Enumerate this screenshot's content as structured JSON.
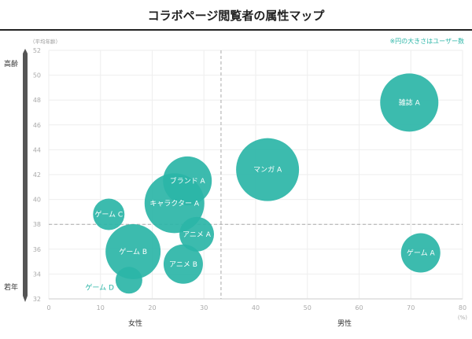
{
  "chart_data": {
    "type": "scatter",
    "subtype": "bubble",
    "title": "コラボページ閲覧者の属性マップ",
    "note": "※円の大きさはユーザー数",
    "ylabel": "（平均年齢）",
    "xunit": "(%)",
    "y_top_label": "高齢",
    "y_bottom_label": "若年",
    "x_left_label": "女性",
    "x_right_label": "男性",
    "xlim": [
      0,
      80
    ],
    "ylim": [
      32,
      52
    ],
    "xticks": [
      0,
      10,
      20,
      30,
      40,
      50,
      60,
      70,
      80
    ],
    "yticks": [
      32,
      34,
      36,
      38,
      40,
      42,
      44,
      46,
      48,
      50,
      52
    ],
    "reference_lines": {
      "x": 33.3,
      "y": 38
    },
    "grid": true,
    "color": "#2bb5a7",
    "points": [
      {
        "label": "雑誌 A",
        "x": 69.7,
        "y": 47.8,
        "size": 37
      },
      {
        "label": "マンガ A",
        "x": 42.3,
        "y": 42.4,
        "size": 40
      },
      {
        "label": "ゲーム A",
        "x": 71.9,
        "y": 35.7,
        "size": 25
      },
      {
        "label": "ブランド A",
        "x": 26.8,
        "y": 41.5,
        "size": 31
      },
      {
        "label": "キャラクター A",
        "x": 24.3,
        "y": 39.7,
        "size": 38
      },
      {
        "label": "ゲーム C",
        "x": 11.6,
        "y": 38.8,
        "size": 20
      },
      {
        "label": "アニメ A",
        "x": 28.6,
        "y": 37.2,
        "size": 22
      },
      {
        "label": "ゲーム B",
        "x": 16.3,
        "y": 35.8,
        "size": 35
      },
      {
        "label": "アニメ B",
        "x": 26.0,
        "y": 34.8,
        "size": 25
      },
      {
        "label": "ゲーム D",
        "x": 15.5,
        "y": 33.5,
        "size": 17,
        "label_outside": true
      }
    ]
  }
}
